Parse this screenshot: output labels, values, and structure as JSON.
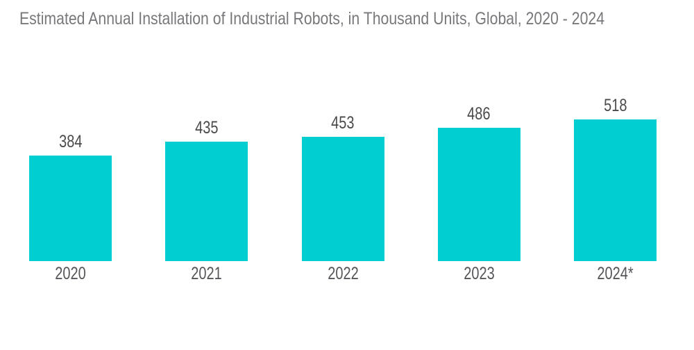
{
  "chart_data": {
    "type": "bar",
    "title": "Estimated Annual Installation of Industrial Robots, in Thousand Units, Global, 2020 - 2024",
    "categories": [
      "2020",
      "2021",
      "2022",
      "2023",
      "2024*"
    ],
    "values": [
      384,
      435,
      453,
      486,
      518
    ],
    "xlabel": "",
    "ylabel": "",
    "ylim": [
      0,
      560
    ],
    "grid": false,
    "legend_position": "none",
    "data_labels_shown": true,
    "footnote_marker": "* denotes estimated year (shown only as asterisk on 2024 label)",
    "colors": {
      "bar": "#00CED1",
      "title_text": "#77787B",
      "value_label_text": "#48494B",
      "category_label_text": "#55565A",
      "background": "#FFFFFF"
    }
  }
}
